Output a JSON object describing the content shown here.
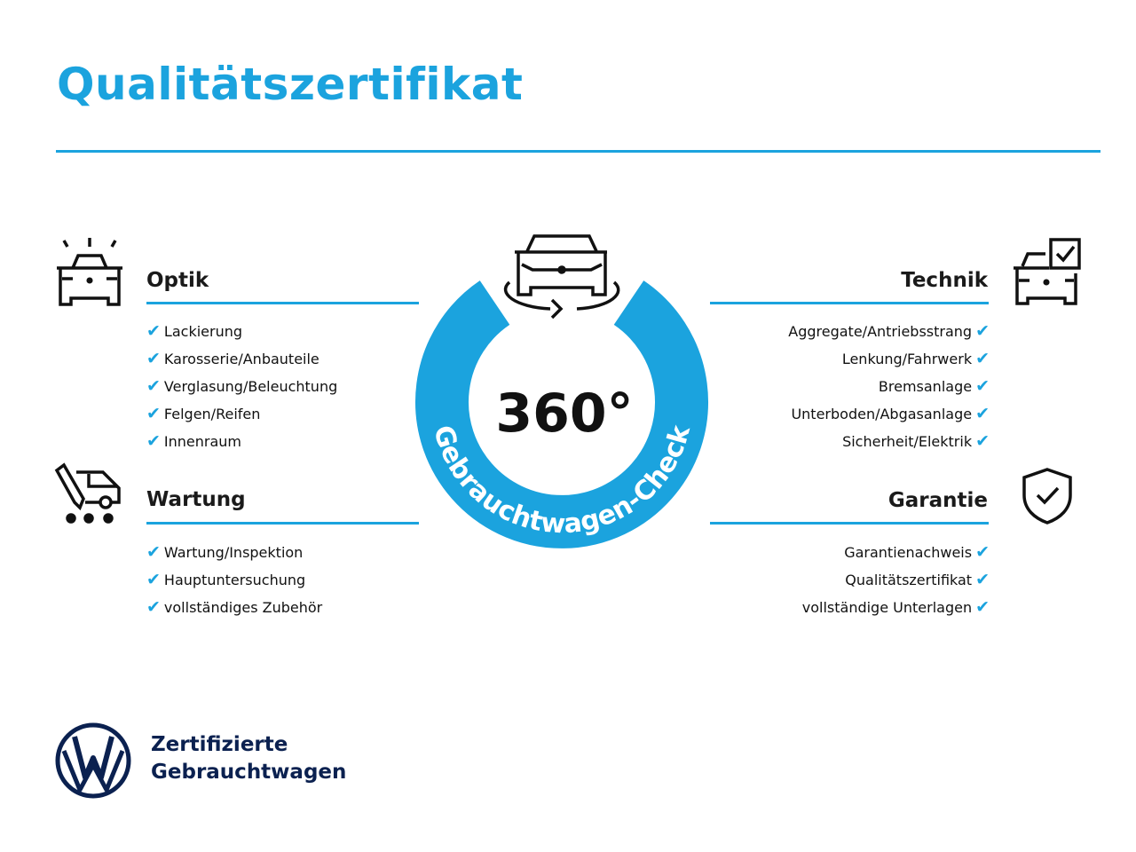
{
  "title": "Qualitätszertifikat",
  "badge": {
    "number": "360°",
    "ring_text": "Gebrauchtwagen-Check",
    "color": "#1ba3de"
  },
  "check_icon": "✔",
  "sections": {
    "optik": {
      "title": "Optik",
      "icon": "car-front-lights-icon",
      "items": [
        "Lackierung",
        "Karosserie/Anbauteile",
        "Verglasung/Beleuchtung",
        "Felgen/Reifen",
        "Innenraum"
      ]
    },
    "wartung": {
      "title": "Wartung",
      "icon": "van-wrench-icon",
      "items": [
        "Wartung/Inspektion",
        "Hauptuntersuchung",
        "vollständiges Zubehör"
      ]
    },
    "technik": {
      "title": "Technik",
      "icon": "car-checkbox-icon",
      "items": [
        "Aggregate/Antriebsstrang",
        "Lenkung/Fahrwerk",
        "Bremsanlage",
        "Unterboden/Abgasanlage",
        "Sicherheit/Elektrik"
      ]
    },
    "garantie": {
      "title": "Garantie",
      "icon": "shield-check-icon",
      "items": [
        "Garantienachweis",
        "Qualitätszertifikat",
        "vollständige Unterlagen"
      ]
    }
  },
  "brand": {
    "line1": "Zertifizierte",
    "line2": "Gebrauchtwagen",
    "logo": "vw-logo",
    "color": "#0b2150"
  }
}
